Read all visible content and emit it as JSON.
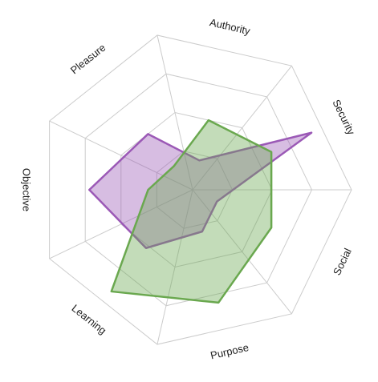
{
  "chart_data": {
    "type": "radar",
    "categories": [
      "Authority",
      "Security",
      "Social",
      "Purpose",
      "Learning",
      "Objective",
      "Pleasure"
    ],
    "rlim": [
      0,
      100
    ],
    "rticks": [
      25,
      50,
      75,
      100
    ],
    "grid": true,
    "series": [
      {
        "color": "#9b59b6",
        "values": [
          19,
          83,
          17,
          27,
          47,
          65,
          45
        ]
      },
      {
        "color": "#6aa84f",
        "values": [
          45,
          55,
          55,
          73,
          82,
          28,
          19
        ]
      }
    ]
  }
}
